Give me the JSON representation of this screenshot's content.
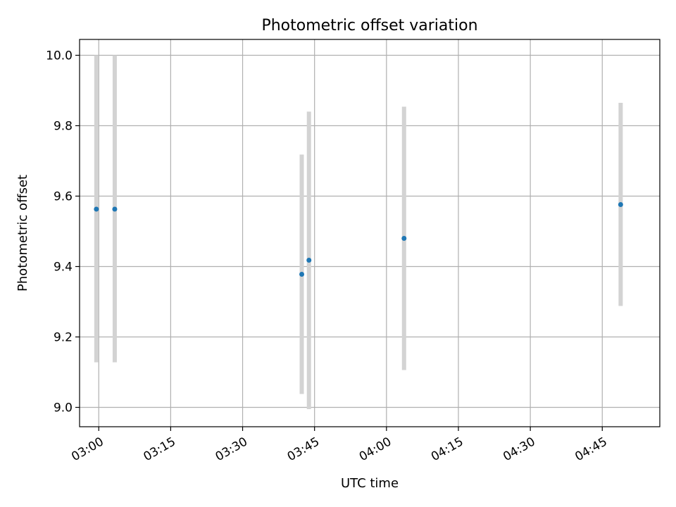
{
  "chart_data": {
    "type": "scatter",
    "title": "Photometric offset variation",
    "xlabel": "UTC time",
    "ylabel": "Photometric offset",
    "x_ticks": [
      "03:00",
      "03:15",
      "03:30",
      "03:45",
      "04:00",
      "04:15",
      "04:30",
      "04:45"
    ],
    "y_ticks": [
      "9.0",
      "9.2",
      "9.4",
      "9.6",
      "9.8",
      "10.0"
    ],
    "xlim": [
      "02:56",
      "04:57"
    ],
    "ylim": [
      8.945,
      10.045
    ],
    "grid": true,
    "points": [
      {
        "x": "02:59:30",
        "y": 9.563,
        "ymin": 9.128,
        "ymax": 10.0
      },
      {
        "x": "03:03:20",
        "y": 9.563,
        "ymin": 9.128,
        "ymax": 10.0
      },
      {
        "x": "03:42:20",
        "y": 9.378,
        "ymin": 9.038,
        "ymax": 9.718
      },
      {
        "x": "03:43:50",
        "y": 9.418,
        "ymin": 8.995,
        "ymax": 9.84
      },
      {
        "x": "04:03:40",
        "y": 9.48,
        "ymin": 9.106,
        "ymax": 9.854
      },
      {
        "x": "04:48:50",
        "y": 9.576,
        "ymin": 9.288,
        "ymax": 9.865
      }
    ],
    "marker_color": "#1f77b4",
    "errorbar_color": "#d3d3d3"
  }
}
